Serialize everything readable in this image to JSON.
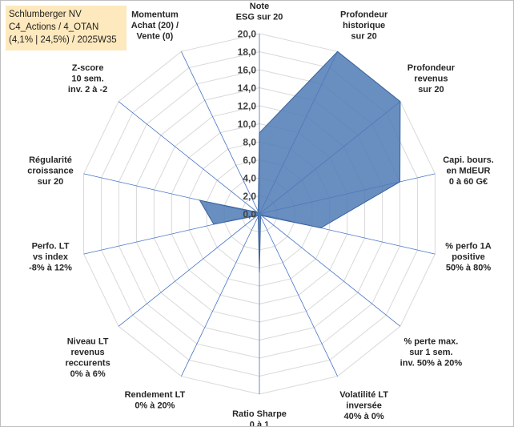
{
  "title_box": {
    "line1": "Schlumberger NV",
    "line2": "C4_Actions / 4_OTAN",
    "line3": "(4,1% | 24,5%) / 2025W35"
  },
  "chart_data": {
    "type": "radar",
    "scale": {
      "min": 0,
      "max": 20,
      "step": 2
    },
    "tick_labels": [
      "0,0",
      "2,0",
      "4,0",
      "6,0",
      "8,0",
      "10,0",
      "12,0",
      "14,0",
      "16,0",
      "18,0",
      "20,0"
    ],
    "axes": [
      {
        "label": [
          "Note",
          "ESG sur 20"
        ],
        "value": 9.0
      },
      {
        "label": [
          "Profondeur",
          "historique",
          "sur 20"
        ],
        "value": 20.0
      },
      {
        "label": [
          "Profondeur",
          "revenus",
          "sur 20"
        ],
        "value": 20.0
      },
      {
        "label": [
          "Capi. bours.",
          "en MdEUR",
          "0 à 60 G€"
        ],
        "value": 16.0
      },
      {
        "label": [
          "% perfo 1A",
          "positive",
          "50% à 80%"
        ],
        "value": 7.0
      },
      {
        "label": [
          "% perte max.",
          "sur 1 sem.",
          "inv. 50% à 20%"
        ],
        "value": 0.3
      },
      {
        "label": [
          "Volatilité LT",
          "inversée",
          "40% à 0%"
        ],
        "value": 0.3
      },
      {
        "label": [
          "Ratio Sharpe",
          "0 à 1"
        ],
        "value": 6.5
      },
      {
        "label": [
          "Rendement LT",
          "0% à 20%"
        ],
        "value": 0.3
      },
      {
        "label": [
          "Niveau LT",
          "revenus",
          "reccurents",
          "0% à 6%"
        ],
        "value": 0.3
      },
      {
        "label": [
          "Perfo. LT",
          "vs index",
          "-8% à 12%"
        ],
        "value": 5.2
      },
      {
        "label": [
          "Régularité",
          "croissance",
          "sur 20"
        ],
        "value": 6.8
      },
      {
        "label": [
          "Z-score",
          "10 sem.",
          "inv. 2 à -2"
        ],
        "value": 0.3
      },
      {
        "label": [
          "Momentum",
          "Achat (20) /",
          "Vente (0)"
        ],
        "value": 0.3
      }
    ],
    "colors": {
      "fill": "#4f7ab5",
      "stroke": "#3a629c",
      "grid": "#d9d9d9",
      "axis": "#4472c4"
    }
  }
}
